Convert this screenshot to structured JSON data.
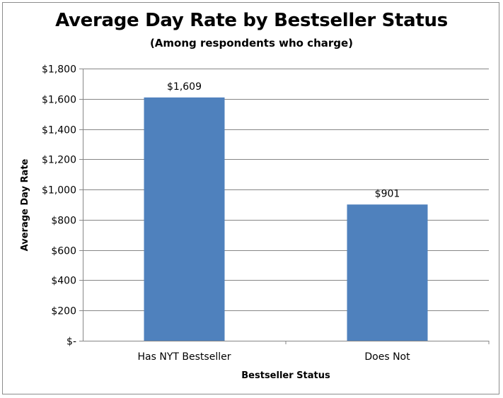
{
  "chart_data": {
    "type": "bar",
    "title": "Average Day Rate by Bestseller Status",
    "subtitle": "(Among respondents who charge)",
    "xlabel": "Bestseller Status",
    "ylabel": "Average Day Rate",
    "categories": [
      "Has NYT Bestseller",
      "Does Not"
    ],
    "values": [
      1609,
      901
    ],
    "data_labels": [
      "$1,609",
      "$901"
    ],
    "ylim": [
      0,
      1800
    ],
    "ytick_values": [
      0,
      200,
      400,
      600,
      800,
      1000,
      1200,
      1400,
      1600,
      1800
    ],
    "ytick_labels": [
      "$-",
      "$200",
      "$400",
      "$600",
      "$800",
      "$1,000",
      "$1,200",
      "$1,400",
      "$1,600",
      "$1,800"
    ],
    "grid": true,
    "legend": "none",
    "bar_color": "#4F81BD",
    "grid_color": "#868686"
  }
}
